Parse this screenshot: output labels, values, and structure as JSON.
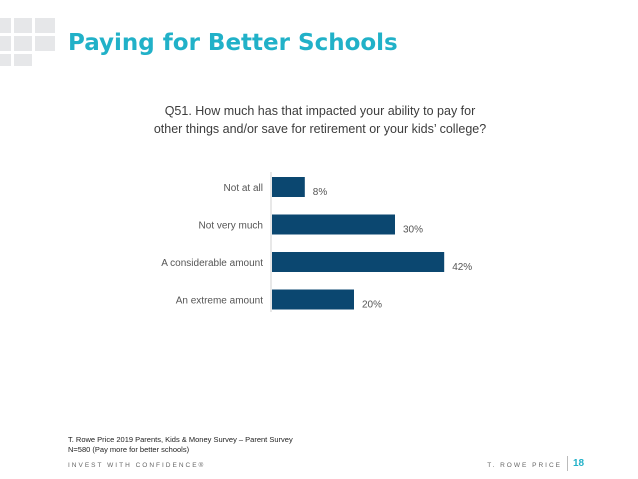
{
  "header": {
    "title": "Paying for Better Schools"
  },
  "chart_data": {
    "type": "bar",
    "orientation": "horizontal",
    "title": "Q51. How much has that impacted your ability to pay for other things and/or save for retirement or your kids’ college?",
    "title_lines": [
      "Q51. How much has that impacted your ability to pay for",
      "other things and/or save for retirement or your kids’ college?"
    ],
    "categories": [
      "Not at all",
      "Not very much",
      "A considerable amount",
      "An extreme amount"
    ],
    "values": [
      8,
      30,
      42,
      20
    ],
    "data_labels": [
      "8%",
      "30%",
      "42%",
      "20%"
    ],
    "bar_color": "#0b4770",
    "xlim": [
      0,
      100
    ],
    "grid": false,
    "legend": "none"
  },
  "source": {
    "line1": "T. Rowe Price 2019 Parents, Kids & Money Survey – Parent Survey",
    "line2": "N=580 (Pay more for better schools)"
  },
  "footer": {
    "tagline": "INVEST WITH CONFIDENCE®",
    "brand": "T. ROWE PRICE",
    "page_number": "18"
  },
  "colors": {
    "accent": "#21b1c8",
    "bar": "#0b4770",
    "logo_grid": "#e6e7e9"
  }
}
